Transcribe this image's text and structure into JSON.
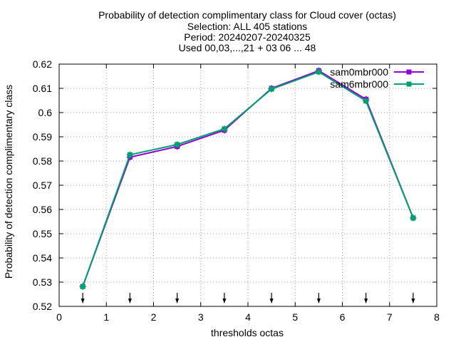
{
  "chart_data": {
    "type": "line",
    "title_lines": [
      "Probability of detection complimentary class  for Cloud cover (octas)",
      "Selection: ALL    405 stations",
      "Period: 20240207-20240325",
      "Used 00,03,...,21 + 03 06 ... 48"
    ],
    "xlabel": "thresholds octas",
    "ylabel": "Probability of detection complimentary class",
    "xlim": [
      0,
      8
    ],
    "ylim": [
      0.52,
      0.62
    ],
    "xticks": [
      0,
      1,
      2,
      3,
      4,
      5,
      6,
      7,
      8
    ],
    "xtick_labels": [
      "0",
      "1",
      "2",
      "3",
      "4",
      "5",
      "6",
      "7",
      "8"
    ],
    "yticks": [
      0.52,
      0.53,
      0.54,
      0.55,
      0.56,
      0.57,
      0.58,
      0.59,
      0.6,
      0.61,
      0.62
    ],
    "ytick_labels": [
      "0.52",
      "0.53",
      "0.54",
      "0.55",
      "0.56",
      "0.57",
      "0.58",
      "0.59",
      "0.6",
      "0.61",
      "0.62"
    ],
    "grid": true,
    "legend_position": "top-right",
    "x": [
      0.5,
      1.5,
      2.5,
      3.5,
      4.5,
      5.5,
      6.5,
      7.5
    ],
    "series": [
      {
        "name": "sam0mbr000",
        "color": "#9400d3",
        "values": [
          0.5282,
          0.5816,
          0.586,
          0.5927,
          0.61,
          0.6173,
          0.6055,
          0.5565
        ]
      },
      {
        "name": "sam6mbr000",
        "color": "#009e73",
        "values": [
          0.5282,
          0.5826,
          0.5868,
          0.5933,
          0.6097,
          0.6168,
          0.6048,
          0.5565
        ]
      }
    ],
    "arrow_markers_x": [
      0.5,
      1.5,
      2.5,
      3.5,
      4.5,
      5.5,
      6.5,
      7.5
    ]
  }
}
